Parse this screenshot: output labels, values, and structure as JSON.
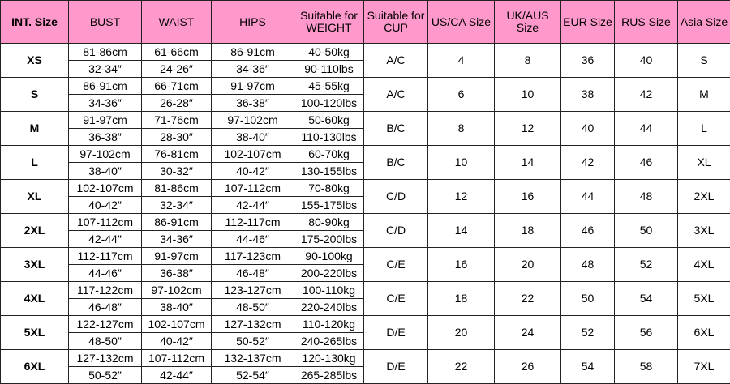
{
  "header_color": "#ff99cc",
  "headers": [
    "INT. Size",
    "BUST",
    "WAIST",
    "HIPS",
    "Suitable for WEIGHT",
    "Suitable for CUP",
    "US/CA Size",
    "UK/AUS Size",
    "EUR Size",
    "RUS Size",
    "Asia Size"
  ],
  "rows": [
    {
      "size": "XS",
      "bust": [
        "81-86cm",
        "32-34″"
      ],
      "waist": [
        "61-66cm",
        "24-26″"
      ],
      "hips": [
        "86-91cm",
        "34-36″"
      ],
      "weight": [
        "40-50kg",
        "90-110lbs"
      ],
      "cup": "A/C",
      "us": "4",
      "uk": "8",
      "eur": "36",
      "rus": "40",
      "asia": "S"
    },
    {
      "size": "S",
      "bust": [
        "86-91cm",
        "34-36″"
      ],
      "waist": [
        "66-71cm",
        "26-28″"
      ],
      "hips": [
        "91-97cm",
        "36-38″"
      ],
      "weight": [
        "45-55kg",
        "100-120lbs"
      ],
      "cup": "A/C",
      "us": "6",
      "uk": "10",
      "eur": "38",
      "rus": "42",
      "asia": "M"
    },
    {
      "size": "M",
      "bust": [
        "91-97cm",
        "36-38″"
      ],
      "waist": [
        "71-76cm",
        "28-30″"
      ],
      "hips": [
        "97-102cm",
        "38-40″"
      ],
      "weight": [
        "50-60kg",
        "110-130lbs"
      ],
      "cup": "B/C",
      "us": "8",
      "uk": "12",
      "eur": "40",
      "rus": "44",
      "asia": "L"
    },
    {
      "size": "L",
      "bust": [
        "97-102cm",
        "38-40″"
      ],
      "waist": [
        "76-81cm",
        "30-32″"
      ],
      "hips": [
        "102-107cm",
        "40-42″"
      ],
      "weight": [
        "60-70kg",
        "130-155lbs"
      ],
      "cup": "B/C",
      "us": "10",
      "uk": "14",
      "eur": "42",
      "rus": "46",
      "asia": "XL"
    },
    {
      "size": "XL",
      "bust": [
        "102-107cm",
        "40-42″"
      ],
      "waist": [
        "81-86cm",
        "32-34″"
      ],
      "hips": [
        "107-112cm",
        "42-44″"
      ],
      "weight": [
        "70-80kg",
        "155-175lbs"
      ],
      "cup": "C/D",
      "us": "12",
      "uk": "16",
      "eur": "44",
      "rus": "48",
      "asia": "2XL"
    },
    {
      "size": "2XL",
      "bust": [
        "107-112cm",
        "42-44″"
      ],
      "waist": [
        "86-91cm",
        "34-36″"
      ],
      "hips": [
        "112-117cm",
        "44-46″"
      ],
      "weight": [
        "80-90kg",
        "175-200lbs"
      ],
      "cup": "C/D",
      "us": "14",
      "uk": "18",
      "eur": "46",
      "rus": "50",
      "asia": "3XL"
    },
    {
      "size": "3XL",
      "bust": [
        "112-117cm",
        "44-46″"
      ],
      "waist": [
        "91-97cm",
        "36-38″"
      ],
      "hips": [
        "117-123cm",
        "46-48″"
      ],
      "weight": [
        "90-100kg",
        "200-220lbs"
      ],
      "cup": "C/E",
      "us": "16",
      "uk": "20",
      "eur": "48",
      "rus": "52",
      "asia": "4XL"
    },
    {
      "size": "4XL",
      "bust": [
        "117-122cm",
        "46-48″"
      ],
      "waist": [
        "97-102cm",
        "38-40″"
      ],
      "hips": [
        "123-127cm",
        "48-50″"
      ],
      "weight": [
        "100-110kg",
        "220-240lbs"
      ],
      "cup": "C/E",
      "us": "18",
      "uk": "22",
      "eur": "50",
      "rus": "54",
      "asia": "5XL"
    },
    {
      "size": "5XL",
      "bust": [
        "122-127cm",
        "48-50″"
      ],
      "waist": [
        "102-107cm",
        "40-42″"
      ],
      "hips": [
        "127-132cm",
        "50-52″"
      ],
      "weight": [
        "110-120kg",
        "240-265lbs"
      ],
      "cup": "D/E",
      "us": "20",
      "uk": "24",
      "eur": "52",
      "rus": "56",
      "asia": "6XL"
    },
    {
      "size": "6XL",
      "bust": [
        "127-132cm",
        "50-52″"
      ],
      "waist": [
        "107-112cm",
        "42-44″"
      ],
      "hips": [
        "132-137cm",
        "52-54″"
      ],
      "weight": [
        "120-130kg",
        "265-285lbs"
      ],
      "cup": "D/E",
      "us": "22",
      "uk": "26",
      "eur": "54",
      "rus": "58",
      "asia": "7XL"
    }
  ]
}
